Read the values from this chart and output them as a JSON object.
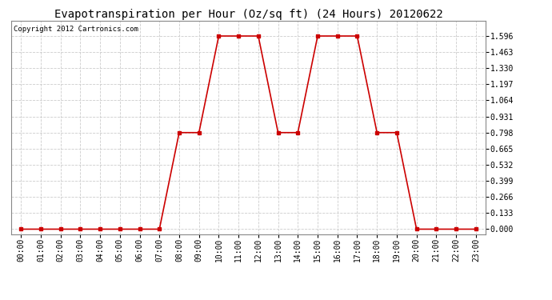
{
  "title": "Evapotranspiration per Hour (Oz/sq ft) (24 Hours) 20120622",
  "copyright": "Copyright 2012 Cartronics.com",
  "hours": [
    0,
    1,
    2,
    3,
    4,
    5,
    6,
    7,
    8,
    9,
    10,
    11,
    12,
    13,
    14,
    15,
    16,
    17,
    18,
    19,
    20,
    21,
    22,
    23
  ],
  "values": [
    0.0,
    0.0,
    0.0,
    0.0,
    0.0,
    0.0,
    0.0,
    0.0,
    0.798,
    0.798,
    1.596,
    1.596,
    1.596,
    0.798,
    0.798,
    1.596,
    1.596,
    1.596,
    0.798,
    0.798,
    0.0,
    0.0,
    0.0,
    0.0
  ],
  "y_ticks": [
    0.0,
    0.133,
    0.266,
    0.399,
    0.532,
    0.665,
    0.798,
    0.931,
    1.064,
    1.197,
    1.33,
    1.463,
    1.596
  ],
  "line_color": "#cc0000",
  "marker": "s",
  "marker_size": 3,
  "bg_color": "#ffffff",
  "grid_color": "#cccccc",
  "title_fontsize": 10,
  "tick_label_fontsize": 7,
  "copyright_fontsize": 6.5,
  "ylim": [
    -0.04,
    1.72
  ],
  "xlim": [
    -0.5,
    23.5
  ]
}
